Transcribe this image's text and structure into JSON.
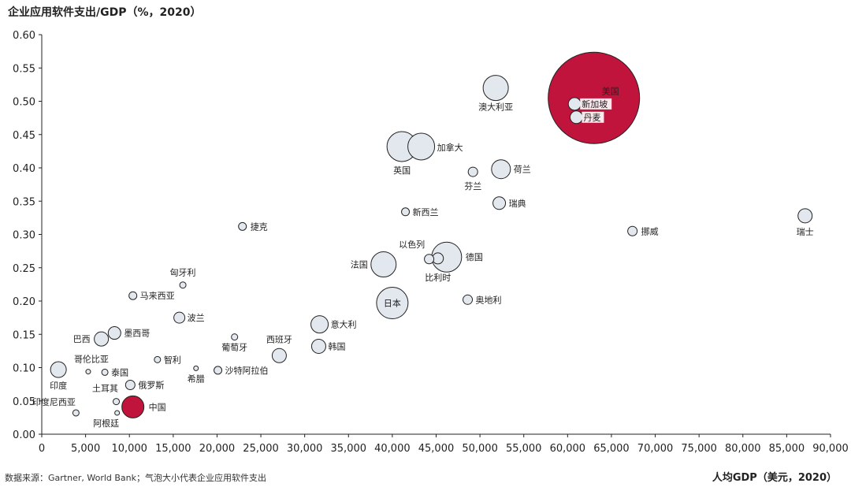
{
  "chart_data": {
    "type": "scatter",
    "title": "",
    "ylabel": "企业应用软件支出/GDP（%，2020）",
    "xlabel": "人均GDP（美元，2020）",
    "source": "数据来源：Gartner, World Bank；气泡大小代表企业应用软件支出",
    "xlim": [
      0,
      90000
    ],
    "ylim": [
      0,
      0.6
    ],
    "x_ticks": [
      "0",
      "5,000",
      "10,000",
      "15,000",
      "20,000",
      "25,000",
      "30,000",
      "35,000",
      "40,000",
      "45,000",
      "50,000",
      "55,000",
      "60,000",
      "65,000",
      "70,000",
      "75,000",
      "80,000",
      "85,000",
      "90,000"
    ],
    "y_ticks": [
      "0.00",
      "0.05",
      "0.10",
      "0.15",
      "0.20",
      "0.25",
      "0.30",
      "0.35",
      "0.40",
      "0.45",
      "0.50",
      "0.55",
      "0.60"
    ],
    "grid": false,
    "highlight_color": "#C0143C",
    "bubble_color": "#E3E8EF",
    "points": [
      {
        "name": "美国",
        "x": 63000,
        "y": 0.505,
        "r": 58,
        "highlight": true
      },
      {
        "name": "新加坡",
        "x": 60800,
        "y": 0.496,
        "r": 8
      },
      {
        "name": "丹麦",
        "x": 61000,
        "y": 0.476,
        "r": 8
      },
      {
        "name": "澳大利亚",
        "x": 51800,
        "y": 0.52,
        "r": 16
      },
      {
        "name": "加拿大",
        "x": 43300,
        "y": 0.432,
        "r": 17
      },
      {
        "name": "英国",
        "x": 41100,
        "y": 0.432,
        "r": 19
      },
      {
        "name": "荷兰",
        "x": 52400,
        "y": 0.398,
        "r": 12
      },
      {
        "name": "芬兰",
        "x": 49200,
        "y": 0.394,
        "r": 6
      },
      {
        "name": "瑞典",
        "x": 52200,
        "y": 0.347,
        "r": 8
      },
      {
        "name": "新西兰",
        "x": 41500,
        "y": 0.334,
        "r": 5
      },
      {
        "name": "瑞士",
        "x": 87100,
        "y": 0.328,
        "r": 9
      },
      {
        "name": "挪威",
        "x": 67400,
        "y": 0.305,
        "r": 6
      },
      {
        "name": "捷克",
        "x": 22900,
        "y": 0.312,
        "r": 5
      },
      {
        "name": "以色列",
        "x": 44200,
        "y": 0.263,
        "r": 6
      },
      {
        "name": "比利时",
        "x": 45200,
        "y": 0.264,
        "r": 7
      },
      {
        "name": "德国",
        "x": 46200,
        "y": 0.266,
        "r": 19
      },
      {
        "name": "法国",
        "x": 39000,
        "y": 0.255,
        "r": 16
      },
      {
        "name": "日本",
        "x": 40000,
        "y": 0.197,
        "r": 20
      },
      {
        "name": "奥地利",
        "x": 48600,
        "y": 0.202,
        "r": 6
      },
      {
        "name": "匈牙利",
        "x": 16100,
        "y": 0.224,
        "r": 4
      },
      {
        "name": "马来西亚",
        "x": 10400,
        "y": 0.208,
        "r": 5
      },
      {
        "name": "波兰",
        "x": 15700,
        "y": 0.175,
        "r": 7
      },
      {
        "name": "意大利",
        "x": 31700,
        "y": 0.165,
        "r": 11
      },
      {
        "name": "墨西哥",
        "x": 8300,
        "y": 0.152,
        "r": 8
      },
      {
        "name": "巴西",
        "x": 6800,
        "y": 0.143,
        "r": 9
      },
      {
        "name": "葡萄牙",
        "x": 22000,
        "y": 0.146,
        "r": 4
      },
      {
        "name": "西班牙",
        "x": 27100,
        "y": 0.118,
        "r": 9
      },
      {
        "name": "韩国",
        "x": 31600,
        "y": 0.132,
        "r": 9
      },
      {
        "name": "智利",
        "x": 13200,
        "y": 0.112,
        "r": 4
      },
      {
        "name": "希腊",
        "x": 17600,
        "y": 0.099,
        "r": 3
      },
      {
        "name": "沙特阿拉伯",
        "x": 20100,
        "y": 0.096,
        "r": 5
      },
      {
        "name": "哥伦比亚",
        "x": 5300,
        "y": 0.094,
        "r": 3
      },
      {
        "name": "泰国",
        "x": 7200,
        "y": 0.093,
        "r": 4
      },
      {
        "name": "印度",
        "x": 1900,
        "y": 0.097,
        "r": 10
      },
      {
        "name": "俄罗斯",
        "x": 10100,
        "y": 0.074,
        "r": 6
      },
      {
        "name": "土耳其",
        "x": 8500,
        "y": 0.049,
        "r": 4
      },
      {
        "name": "中国",
        "x": 10400,
        "y": 0.041,
        "r": 14,
        "highlight": true
      },
      {
        "name": "印度尼西亚",
        "x": 3900,
        "y": 0.032,
        "r": 4
      },
      {
        "name": "阿根廷",
        "x": 8600,
        "y": 0.032,
        "r": 3
      }
    ]
  }
}
